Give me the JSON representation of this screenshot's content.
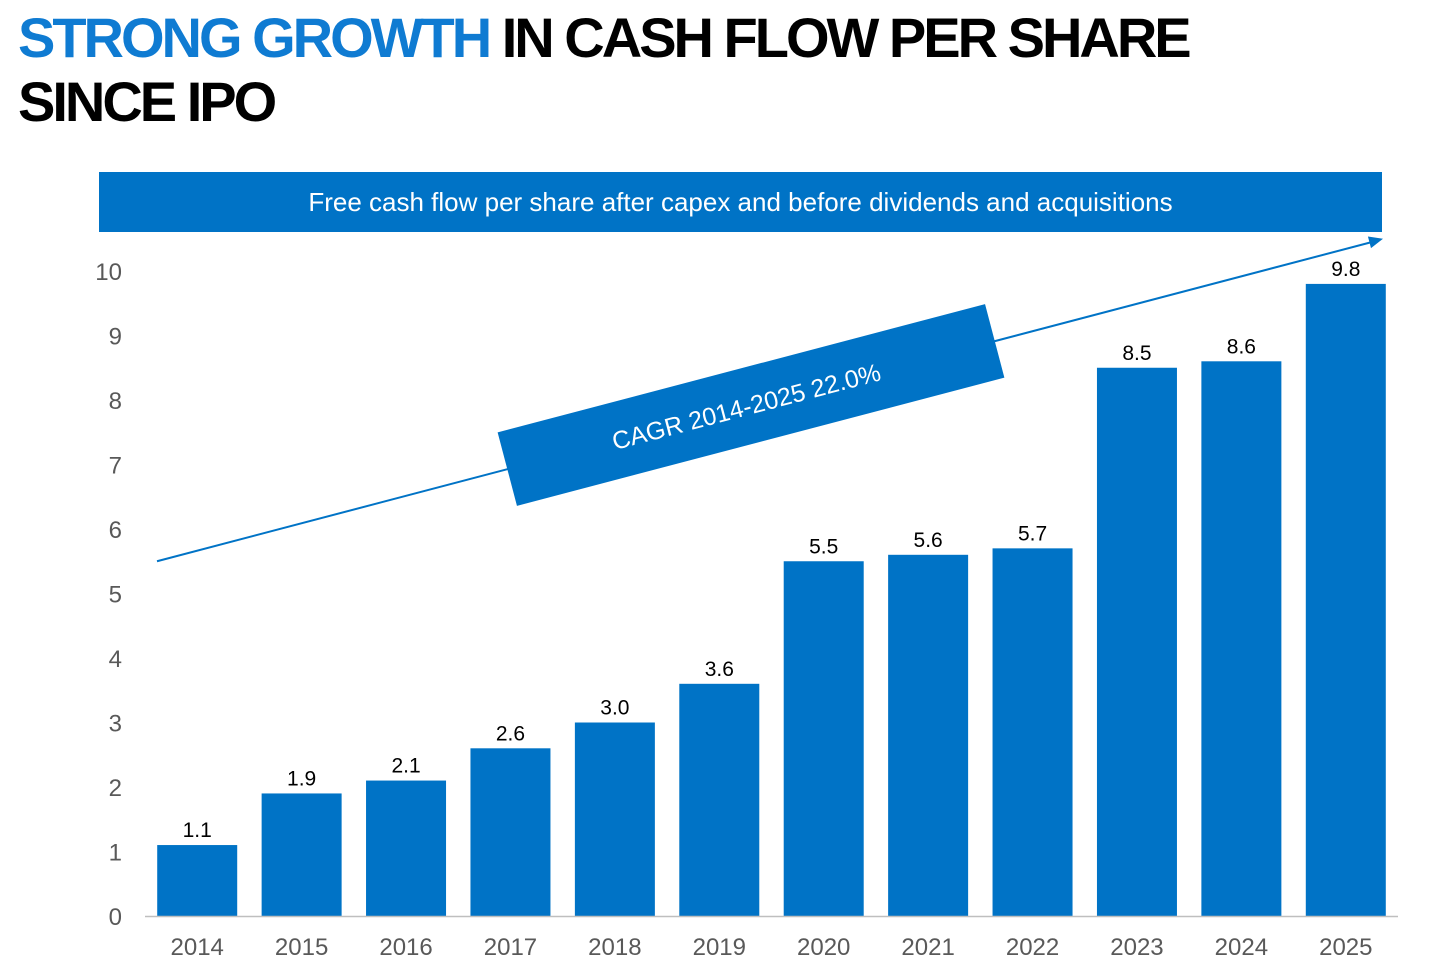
{
  "slide": {
    "title_accent": "STRONG GROWTH",
    "title_rest": " IN CASH FLOW PER SHARE SINCE IPO",
    "banner": "Free cash flow per share after capex and before dividends and acquisitions"
  },
  "colors": {
    "accent": "#0f7bd2",
    "bar": "#0073c6",
    "axis_text": "#595959",
    "label_text": "#000000"
  },
  "chart_data": {
    "type": "bar",
    "title": "Free cash flow per share after capex and before dividends and acquisitions",
    "xlabel": "",
    "ylabel": "",
    "categories": [
      "2014",
      "2015",
      "2016",
      "2017",
      "2018",
      "2019",
      "2020",
      "2021",
      "2022",
      "2023",
      "2024",
      "2025"
    ],
    "values": [
      1.1,
      1.9,
      2.1,
      2.6,
      3.0,
      3.6,
      5.5,
      5.6,
      5.7,
      8.5,
      8.6,
      9.8
    ],
    "value_labels": [
      "1.1",
      "1.9",
      "2.1",
      "2.6",
      "3.0",
      "3.6",
      "5.5",
      "5.6",
      "5.7",
      "8.5",
      "8.6",
      "9.8"
    ],
    "ylim": [
      0,
      10
    ],
    "yticks": [
      0,
      1,
      2,
      3,
      4,
      5,
      6,
      7,
      8,
      9,
      10
    ],
    "grid": false,
    "trend": {
      "label": "CAGR 2014-2025 22.0%",
      "start_value": 5.5,
      "end_value": 10.5
    }
  }
}
